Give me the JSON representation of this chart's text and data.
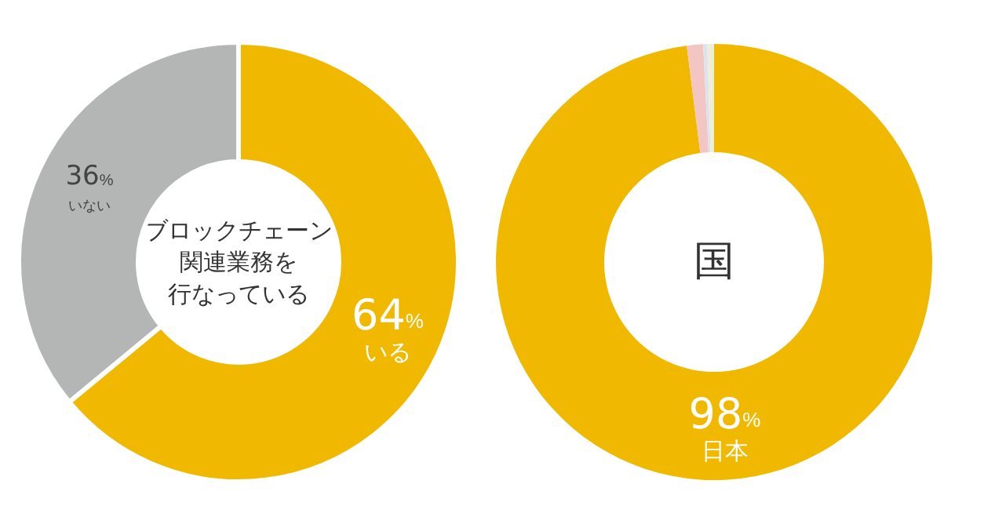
{
  "chart_data": [
    {
      "type": "donut",
      "title": "ブロックチェーン関連業務を行なっている",
      "categories": [
        "いる",
        "いない"
      ],
      "values": [
        64,
        36
      ],
      "colors": [
        "#f0b900",
        "#b4b5b5"
      ],
      "value_labels": [
        "64%",
        "36%"
      ],
      "legend": false
    },
    {
      "type": "donut",
      "title": "国",
      "categories": [
        "日本",
        null,
        null,
        null,
        null
      ],
      "values": [
        98,
        1.2,
        0.3,
        0.25,
        0.25
      ],
      "colors": [
        "#f0b900",
        "#f4c6c3",
        "#d9e4ee",
        "#f4ecd0",
        "#e6efd9"
      ],
      "value_labels": [
        "98%",
        null,
        null,
        null,
        null
      ],
      "legend": false
    }
  ]
}
